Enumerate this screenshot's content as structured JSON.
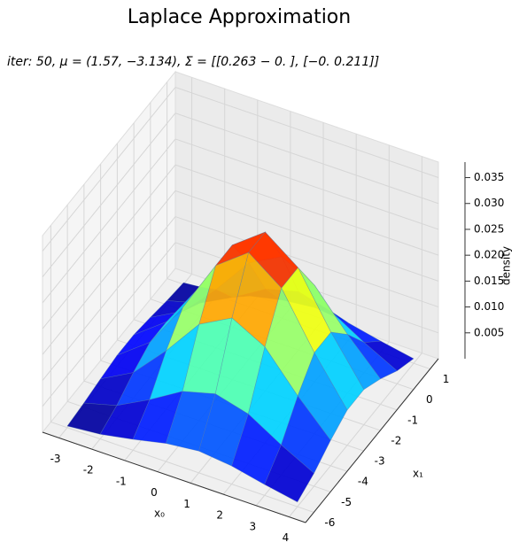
{
  "chart_data": {
    "type": "surface3d",
    "title": "Laplace Approximation",
    "subtitle": "iter: 50, μ = (1.57, −3.134), Σ = [[0.263 − 0. ], [−0. 0.211]]",
    "xlabel": "x₀",
    "ylabel": "x₁",
    "zlabel": "density",
    "x": [
      -3,
      -2,
      -1,
      0,
      1,
      2,
      3,
      4
    ],
    "y": [
      -6,
      -5,
      -4,
      -3,
      -2,
      -1,
      0,
      1
    ],
    "z": [
      [
        0.0003,
        0.0009,
        0.0021,
        0.0035,
        0.0042,
        0.0035,
        0.0021,
        0.0009
      ],
      [
        0.0008,
        0.0025,
        0.0058,
        0.0096,
        0.0113,
        0.0096,
        0.0058,
        0.0025
      ],
      [
        0.0015,
        0.0049,
        0.0113,
        0.0186,
        0.022,
        0.0186,
        0.0113,
        0.0049
      ],
      [
        0.0021,
        0.0068,
        0.0157,
        0.026,
        0.0307,
        0.026,
        0.0157,
        0.0068
      ],
      [
        0.0021,
        0.0068,
        0.0157,
        0.026,
        0.0307,
        0.026,
        0.0157,
        0.0068
      ],
      [
        0.0015,
        0.0049,
        0.0113,
        0.0186,
        0.022,
        0.0186,
        0.0113,
        0.0049
      ],
      [
        0.0008,
        0.0025,
        0.0058,
        0.0096,
        0.0113,
        0.0096,
        0.0058,
        0.0025
      ],
      [
        0.0003,
        0.0009,
        0.0021,
        0.0035,
        0.0042,
        0.0035,
        0.0021,
        0.0009
      ]
    ],
    "colormap": "jet",
    "xlim": [
      -3.5,
      4.5
    ],
    "ylim": [
      -6.5,
      1.5
    ],
    "zlim": [
      0,
      0.038
    ],
    "xticks": [
      -3,
      -2,
      -1,
      0,
      1,
      2,
      3,
      4
    ],
    "yticks": [
      -6,
      -5,
      -4,
      -3,
      -2,
      -1,
      0,
      1
    ],
    "zticks": [
      0.005,
      {
        "value": 0.01,
        "label": "0.010"
      },
      0.015,
      {
        "value": 0.02,
        "label": "0.020"
      },
      0.025,
      {
        "value": 0.03,
        "label": "0.030"
      },
      0.035
    ],
    "grid": true
  }
}
